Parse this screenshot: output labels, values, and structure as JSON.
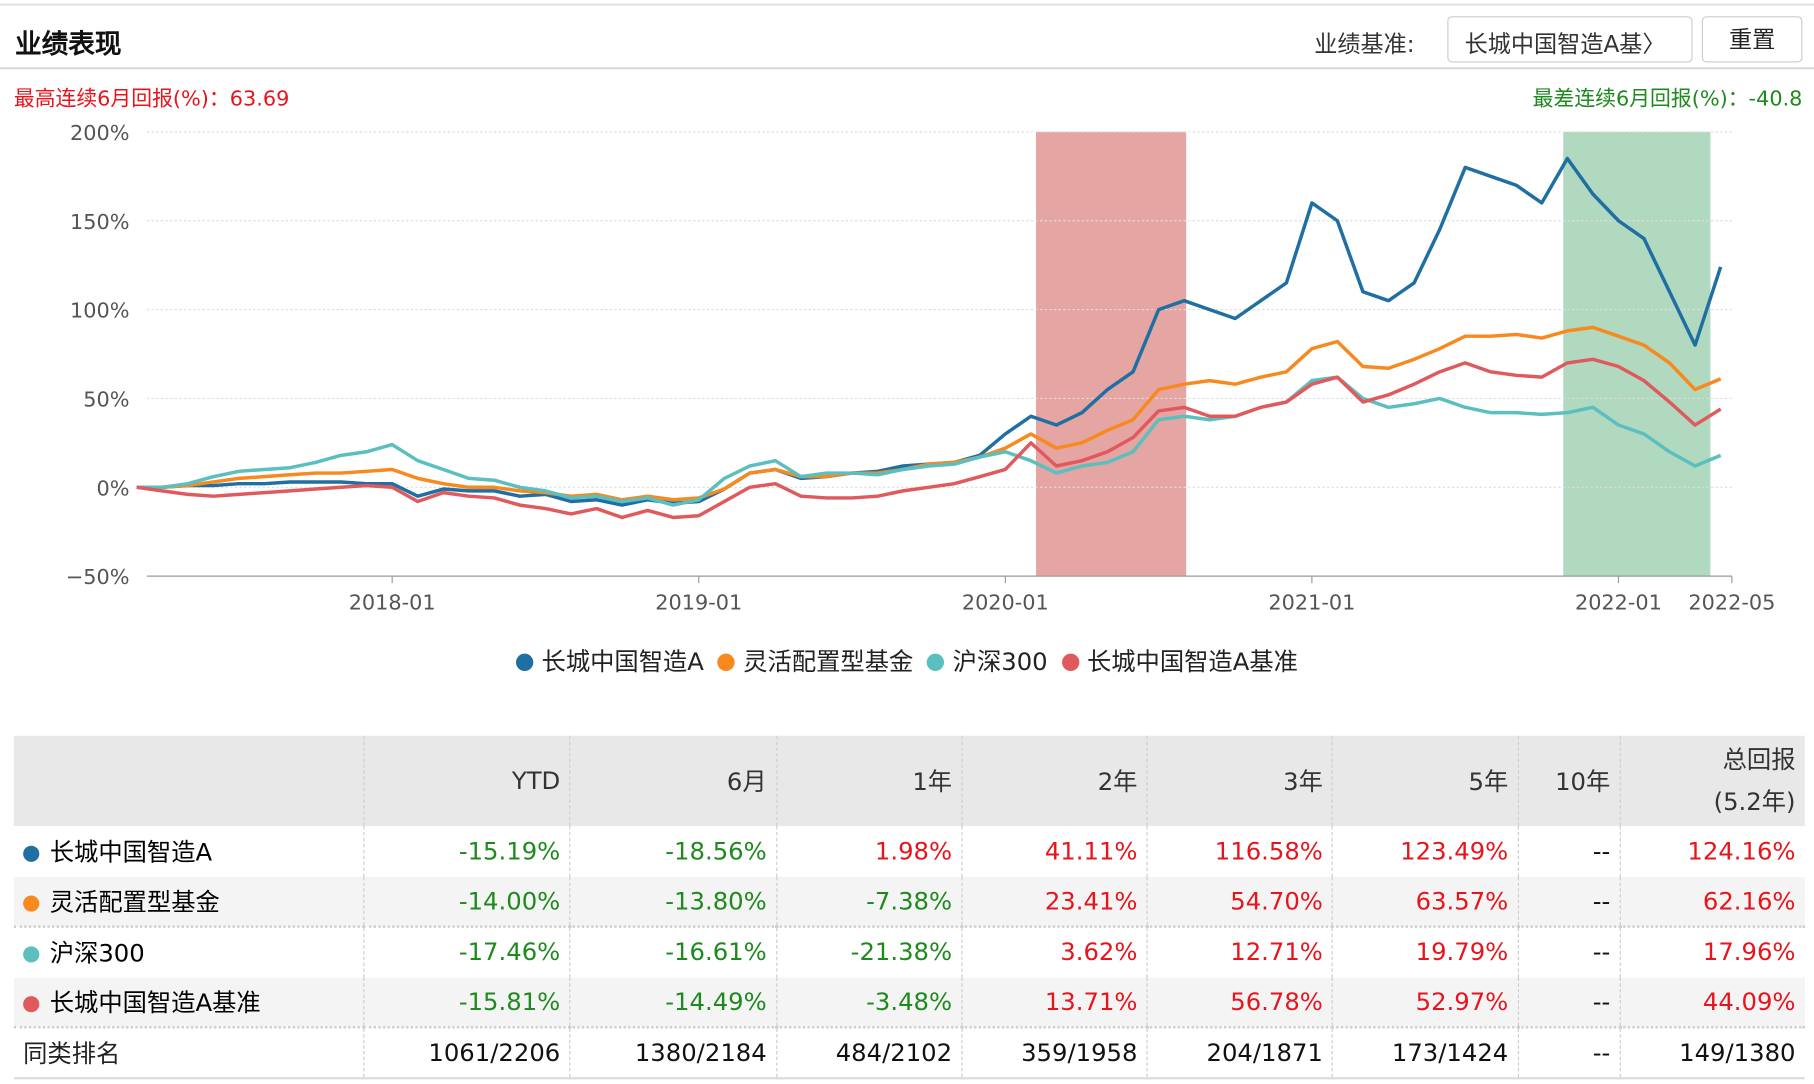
{
  "header": {
    "title": "业绩表现",
    "benchmark_label": "业绩基准:",
    "benchmark_value": "长城中国智造A基〉",
    "reset": "重置"
  },
  "stats": {
    "best": "最高连续6月回报(%)：63.69",
    "worst": "最差连续6月回报(%)：-40.8"
  },
  "chart_data": {
    "type": "line",
    "x_domain_years": [
      2017.2,
      2022.37
    ],
    "ylim": [
      -50,
      200
    ],
    "yticks": [
      {
        "v": 200,
        "label": "200%"
      },
      {
        "v": 150,
        "label": "150%"
      },
      {
        "v": 100,
        "label": "100%"
      },
      {
        "v": 50,
        "label": "50%"
      },
      {
        "v": 0,
        "label": "0%"
      },
      {
        "v": -50,
        "label": "−50%"
      }
    ],
    "xticks": [
      {
        "t": 2018.0,
        "label": "2018-01"
      },
      {
        "t": 2019.0,
        "label": "2019-01"
      },
      {
        "t": 2020.0,
        "label": "2020-01"
      },
      {
        "t": 2021.0,
        "label": "2021-01"
      },
      {
        "t": 2022.0,
        "label": "2022-01"
      },
      {
        "t": 2022.37,
        "label": "2022-05"
      }
    ],
    "shaded": [
      {
        "from": 2020.1,
        "to": 2020.59,
        "color": "#e5a6a3",
        "meaning": "best 6 months"
      },
      {
        "from": 2021.82,
        "to": 2022.3,
        "color": "#b0d9c0",
        "meaning": "worst 6 months"
      }
    ],
    "start": "2017-03",
    "series": [
      {
        "name": "长城中国智造A",
        "color": "#1f6fa3",
        "values": [
          0,
          0,
          1,
          1,
          2,
          2,
          3,
          3,
          3,
          2,
          2,
          -5,
          -1,
          -2,
          -2,
          -5,
          -4,
          -8,
          -7,
          -10,
          -7,
          -9,
          -8,
          -1,
          8,
          10,
          5,
          6,
          8,
          9,
          12,
          13,
          14,
          18,
          30,
          40,
          35,
          42,
          55,
          65,
          100,
          105,
          100,
          95,
          105,
          115,
          160,
          150,
          110,
          105,
          115,
          145,
          180,
          175,
          170,
          160,
          185,
          165,
          150,
          140,
          110,
          80,
          124
        ]
      },
      {
        "name": "灵活配置型基金",
        "color": "#f7891e",
        "values": [
          0,
          0,
          1,
          3,
          5,
          6,
          7,
          8,
          8,
          9,
          10,
          5,
          2,
          0,
          0,
          -2,
          -3,
          -5,
          -4,
          -7,
          -5,
          -7,
          -6,
          -1,
          8,
          10,
          6,
          6,
          8,
          8,
          10,
          13,
          14,
          17,
          22,
          30,
          22,
          25,
          32,
          38,
          55,
          58,
          60,
          58,
          62,
          65,
          78,
          82,
          68,
          67,
          72,
          78,
          85,
          85,
          86,
          84,
          88,
          90,
          85,
          80,
          70,
          55,
          61
        ]
      },
      {
        "name": "沪深300",
        "color": "#5bbfc0",
        "values": [
          0,
          0,
          2,
          6,
          9,
          10,
          11,
          14,
          18,
          20,
          24,
          15,
          10,
          5,
          4,
          0,
          -2,
          -6,
          -5,
          -8,
          -6,
          -10,
          -7,
          5,
          12,
          15,
          6,
          8,
          8,
          7,
          10,
          12,
          13,
          17,
          20,
          15,
          8,
          12,
          14,
          20,
          38,
          40,
          38,
          40,
          45,
          48,
          60,
          62,
          50,
          45,
          47,
          50,
          45,
          42,
          42,
          41,
          42,
          45,
          35,
          30,
          20,
          12,
          18
        ]
      },
      {
        "name": "长城中国智造A基准",
        "color": "#e0595c",
        "values": [
          0,
          -2,
          -4,
          -5,
          -4,
          -3,
          -2,
          -1,
          0,
          1,
          0,
          -8,
          -3,
          -5,
          -6,
          -10,
          -12,
          -15,
          -12,
          -17,
          -13,
          -17,
          -16,
          -8,
          0,
          2,
          -5,
          -6,
          -6,
          -5,
          -2,
          0,
          2,
          6,
          10,
          25,
          12,
          15,
          20,
          28,
          43,
          45,
          40,
          40,
          45,
          48,
          58,
          62,
          48,
          52,
          58,
          65,
          70,
          65,
          63,
          62,
          70,
          72,
          68,
          60,
          48,
          35,
          44
        ]
      }
    ]
  },
  "table": {
    "headers": [
      "",
      "YTD",
      "6月",
      "1年",
      "2年",
      "3年",
      "5年",
      "10年",
      "总回报",
      "(5.2年)"
    ],
    "rows": [
      {
        "name": "长城中国智造A",
        "color": "#1f6fa3",
        "cells": [
          "-15.19%",
          "-18.56%",
          "1.98%",
          "41.11%",
          "116.58%",
          "123.49%",
          "--",
          "124.16%"
        ]
      },
      {
        "name": "灵活配置型基金",
        "color": "#f7891e",
        "cells": [
          "-14.00%",
          "-13.80%",
          "-7.38%",
          "23.41%",
          "54.70%",
          "63.57%",
          "--",
          "62.16%"
        ]
      },
      {
        "name": "沪深300",
        "color": "#5bbfc0",
        "cells": [
          "-17.46%",
          "-16.61%",
          "-21.38%",
          "3.62%",
          "12.71%",
          "19.79%",
          "--",
          "17.96%"
        ]
      },
      {
        "name": "长城中国智造A基准",
        "color": "#e0595c",
        "cells": [
          "-15.81%",
          "-14.49%",
          "-3.48%",
          "13.71%",
          "56.78%",
          "52.97%",
          "--",
          "44.09%"
        ]
      }
    ],
    "rank": {
      "name": "同类排名",
      "cells": [
        "1061/2206",
        "1380/2184",
        "484/2102",
        "359/1958",
        "204/1871",
        "173/1424",
        "--",
        "149/1380"
      ]
    }
  }
}
